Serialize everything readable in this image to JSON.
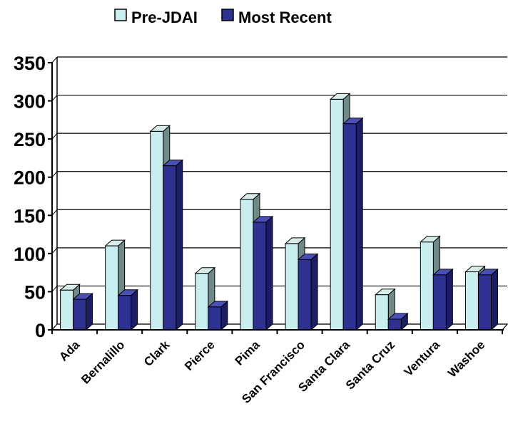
{
  "chart_data": {
    "type": "bar",
    "title": "",
    "xlabel": "",
    "ylabel": "",
    "categories": [
      "Ada",
      "Bernalillo",
      "Clark",
      "Pierce",
      "Pima",
      "San Francisco",
      "Santa Clara",
      "Santa Cruz",
      "Ventura",
      "Washoe"
    ],
    "series": [
      {
        "name": "Pre-JDAI",
        "color": "#c8eef0",
        "values": [
          52,
          110,
          260,
          74,
          171,
          113,
          302,
          46,
          115,
          76
        ]
      },
      {
        "name": "Most Recent",
        "color": "#2e3192",
        "values": [
          40,
          45,
          215,
          30,
          141,
          92,
          270,
          14,
          72,
          72
        ]
      }
    ],
    "ylim": [
      0,
      350
    ],
    "yticks": [
      0,
      50,
      100,
      150,
      200,
      250,
      300,
      350
    ],
    "grid": true,
    "legend_position": "top-center",
    "style": "3d"
  }
}
